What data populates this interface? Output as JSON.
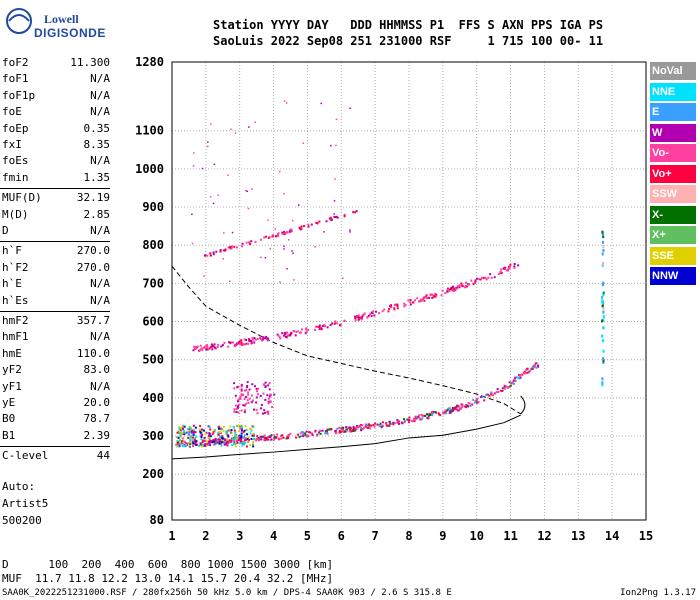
{
  "logo": {
    "line1": "Lowell",
    "line2": "DIGISONDE"
  },
  "header": {
    "row1": "Station YYYY DAY   DDD HHMMSS P1  FFS S AXN PPS IGA PS",
    "row2": "SaoLuis 2022 Sep08 251 231000 RSF     1 715 100 00- 11"
  },
  "params": [
    {
      "k": "foF2",
      "v": "11.300"
    },
    {
      "k": "foF1",
      "v": "N/A"
    },
    {
      "k": "foF1p",
      "v": "N/A"
    },
    {
      "k": "foE",
      "v": "N/A"
    },
    {
      "k": "foEp",
      "v": "0.35"
    },
    {
      "k": "fxI",
      "v": "8.35"
    },
    {
      "k": "foEs",
      "v": "N/A"
    },
    {
      "k": "fmin",
      "v": "1.35"
    },
    {
      "k": "MUF(D)",
      "v": "32.19"
    },
    {
      "k": "M(D)",
      "v": "2.85"
    },
    {
      "k": "D",
      "v": "N/A"
    },
    {
      "k": "h`F",
      "v": "270.0"
    },
    {
      "k": "h`F2",
      "v": "270.0"
    },
    {
      "k": "h`E",
      "v": "N/A"
    },
    {
      "k": "h`Es",
      "v": "N/A"
    },
    {
      "k": "hmF2",
      "v": "357.7"
    },
    {
      "k": "hmF1",
      "v": "N/A"
    },
    {
      "k": "hmE",
      "v": "110.0"
    },
    {
      "k": "yF2",
      "v": "83.0"
    },
    {
      "k": "yF1",
      "v": "N/A"
    },
    {
      "k": "yE",
      "v": "20.0"
    },
    {
      "k": "B0",
      "v": "78.7"
    },
    {
      "k": "B1",
      "v": "2.39"
    },
    {
      "k": "C-level",
      "v": "44"
    }
  ],
  "notes": {
    "auto": "Auto:",
    "artist": "Artist5",
    "code": "500200"
  },
  "muf_table": {
    "row_d": "D      100  200  400  600  800 1000 1500 3000 [km]",
    "row_muf": "MUF  11.7 11.8 12.2 13.0 14.1 15.7 20.4 32.2 [MHz]"
  },
  "footer": {
    "left": "SAA0K_2022251231000.RSF / 280fx256h 50 kHz 5.0 km / DPS-4 SAA0K 903 / 2.6 S 315.8 E",
    "right": "Ion2Png 1.3.17"
  },
  "legend": [
    {
      "label": "NoVal",
      "color": "#999999"
    },
    {
      "label": "NNE",
      "color": "#00e0ff"
    },
    {
      "label": "E",
      "color": "#3aa0ff"
    },
    {
      "label": "W",
      "color": "#b000b0"
    },
    {
      "label": "Vo-",
      "color": "#ff40a0"
    },
    {
      "label": "Vo+",
      "color": "#ff0040"
    },
    {
      "label": "SSW",
      "color": "#ffb0b0"
    },
    {
      "label": "X-",
      "color": "#007000"
    },
    {
      "label": "X+",
      "color": "#60c060"
    },
    {
      "label": "SSE",
      "color": "#e0d000"
    },
    {
      "label": "NNW",
      "color": "#0000d0"
    }
  ],
  "chart_data": {
    "type": "scatter",
    "xlim": [
      1,
      15
    ],
    "ylim": [
      80,
      1280
    ],
    "x_ticks": [
      1,
      2,
      3,
      4,
      5,
      6,
      7,
      8,
      9,
      10,
      11,
      12,
      13,
      14,
      15
    ],
    "y_ticks": [
      80,
      200,
      300,
      400,
      500,
      600,
      700,
      800,
      900,
      1000,
      1100,
      1280
    ],
    "y_tick_labels": [
      "80",
      "200",
      "300",
      "400",
      "500",
      "600",
      "700",
      "800",
      "900",
      "1000",
      "1100",
      "1280"
    ],
    "grid": true,
    "trace_F2_o": [
      [
        1.1,
        280
      ],
      [
        2,
        285
      ],
      [
        3,
        293
      ],
      [
        4,
        300
      ],
      [
        5,
        308
      ],
      [
        6,
        318
      ],
      [
        7,
        330
      ],
      [
        8,
        345
      ],
      [
        9,
        365
      ],
      [
        9.5,
        378
      ],
      [
        10,
        395
      ],
      [
        10.5,
        415
      ],
      [
        11,
        440
      ],
      [
        11.3,
        465
      ],
      [
        11.6,
        480
      ],
      [
        11.8,
        492
      ]
    ],
    "trace_F2_multihop": [
      [
        1.6,
        530
      ],
      [
        2.5,
        540
      ],
      [
        3.5,
        555
      ],
      [
        4.5,
        570
      ],
      [
        5.5,
        590
      ],
      [
        6.5,
        612
      ],
      [
        7.5,
        640
      ],
      [
        8.5,
        665
      ],
      [
        9.5,
        695
      ],
      [
        10.5,
        725
      ],
      [
        11.2,
        755
      ]
    ],
    "trace_F2_triple": [
      [
        1.8,
        770
      ],
      [
        2.5,
        790
      ],
      [
        3.5,
        815
      ],
      [
        4.5,
        840
      ],
      [
        5.5,
        868
      ],
      [
        6.5,
        890
      ]
    ],
    "profile_dashed": [
      [
        1,
        745
      ],
      [
        1.5,
        690
      ],
      [
        2,
        640
      ],
      [
        3,
        590
      ],
      [
        4,
        545
      ],
      [
        5,
        510
      ],
      [
        6,
        490
      ],
      [
        7,
        470
      ],
      [
        8,
        452
      ],
      [
        9,
        432
      ],
      [
        10,
        410
      ],
      [
        10.8,
        385
      ],
      [
        11.3,
        358
      ]
    ],
    "profile_solid": [
      [
        1,
        240
      ],
      [
        2,
        245
      ],
      [
        3,
        252
      ],
      [
        4,
        258
      ],
      [
        5,
        265
      ],
      [
        6,
        272
      ],
      [
        7,
        280
      ],
      [
        8,
        295
      ],
      [
        9,
        302
      ],
      [
        10,
        318
      ],
      [
        10.8,
        335
      ],
      [
        11.3,
        355
      ]
    ]
  }
}
